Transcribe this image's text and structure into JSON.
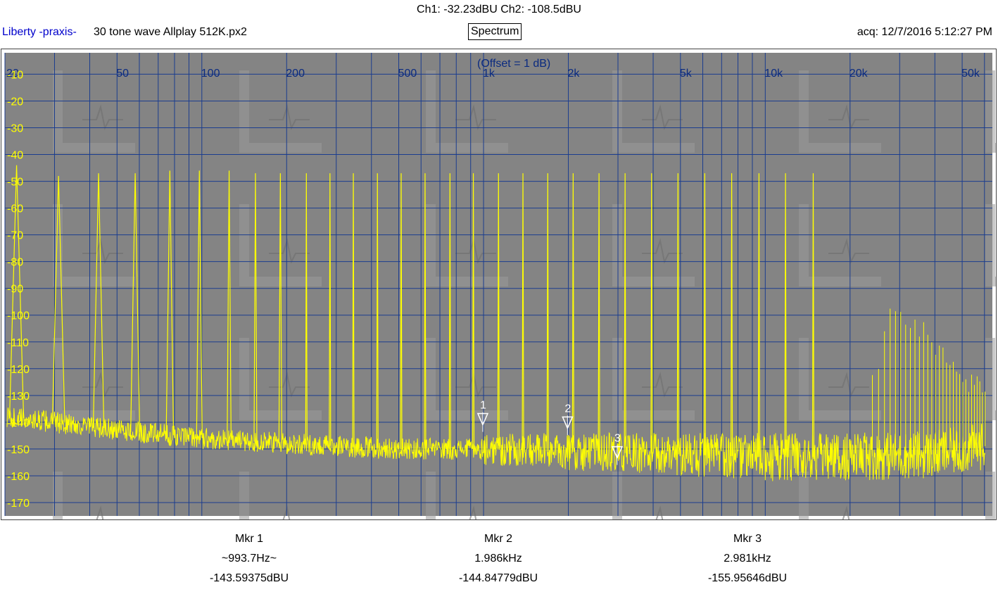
{
  "header": {
    "readout": "Ch1: -32.23dBU  Ch2: -108.5dBU",
    "app_name": "Liberty -praxis-",
    "file_name": "30 tone wave Allplay 512K.px2",
    "view_button": "Spectrum",
    "acquired": "acq: 12/7/2016 5:12:27 PM"
  },
  "colors": {
    "plot_background": "#848484",
    "grid": "#1b3d8f",
    "axis_labels": "#0a2a80",
    "y_labels": "#ffff00",
    "trace": "#ffff00",
    "marker": "#ffffff"
  },
  "chart_data": {
    "type": "line",
    "title": "",
    "annotation": "(Offset = 1 dB)",
    "x_scale": "log",
    "xlim": [
      20,
      64000
    ],
    "ylim": [
      -175,
      -2
    ],
    "grid": true,
    "x_tick_labels": [
      {
        "value": 20,
        "label": "20"
      },
      {
        "value": 50,
        "label": "50"
      },
      {
        "value": 100,
        "label": "100"
      },
      {
        "value": 200,
        "label": "200"
      },
      {
        "value": 500,
        "label": "500"
      },
      {
        "value": 1000,
        "label": "1k"
      },
      {
        "value": 2000,
        "label": "2k"
      },
      {
        "value": 5000,
        "label": "5k"
      },
      {
        "value": 10000,
        "label": "10k"
      },
      {
        "value": 20000,
        "label": "20k"
      },
      {
        "value": 50000,
        "label": "50k"
      }
    ],
    "y_tick_labels": [
      -10,
      -20,
      -30,
      -40,
      -50,
      -60,
      -70,
      -80,
      -90,
      -100,
      -110,
      -120,
      -130,
      -140,
      -150,
      -160,
      -170
    ],
    "series": [
      {
        "tone_peaks_hz": [
          22,
          31,
          43,
          58,
          77,
          98,
          125,
          155,
          190,
          235,
          285,
          345,
          420,
          510,
          620,
          760,
          920,
          1130,
          1380,
          1690,
          2080,
          2570,
          3180,
          3950,
          4900,
          6100,
          7600,
          9500,
          11800,
          14800
        ],
        "tone_peak_dbu": [
          -44,
          -48,
          -47,
          -47,
          -46,
          -46,
          -46,
          -47,
          -47,
          -47,
          -47,
          -47,
          -47,
          -47,
          -47,
          -47,
          -47,
          -47,
          -47,
          -47,
          -47,
          -47,
          -47,
          -47,
          -47,
          -47,
          -47,
          -47,
          -47,
          -47
        ],
        "noise_floor": {
          "x": [
            20,
            30,
            50,
            100,
            200,
            500,
            1000,
            2000,
            5000,
            10000,
            20000,
            40000,
            60000
          ],
          "y": [
            -138,
            -140,
            -143,
            -146,
            -148,
            -150,
            -150,
            -151,
            -152,
            -153,
            -153,
            -152,
            -149
          ]
        },
        "hf_spurs": {
          "x": [
            25000,
            27000,
            29000,
            31000,
            33000,
            34500,
            36000,
            38000,
            40000,
            43000,
            46000,
            50000,
            55000,
            60000
          ],
          "y": [
            -120,
            -103,
            -99,
            -100,
            -101,
            -103,
            -105,
            -107,
            -112,
            -116,
            -119,
            -124,
            -126,
            -128
          ]
        }
      }
    ],
    "markers": [
      {
        "label": "1",
        "x": 993.7,
        "y": -143.59375
      },
      {
        "label": "2",
        "x": 1986,
        "y": -144.84779
      },
      {
        "label": "3",
        "x": 2981,
        "y": -155.95646
      }
    ]
  },
  "marker_readouts": [
    {
      "title": "Mkr 1",
      "freq": "~993.7Hz~",
      "level": "-143.59375dBU"
    },
    {
      "title": "Mkr 2",
      "freq": "1.986kHz",
      "level": "-144.84779dBU"
    },
    {
      "title": "Mkr 3",
      "freq": "2.981kHz",
      "level": "-155.95646dBU"
    }
  ]
}
